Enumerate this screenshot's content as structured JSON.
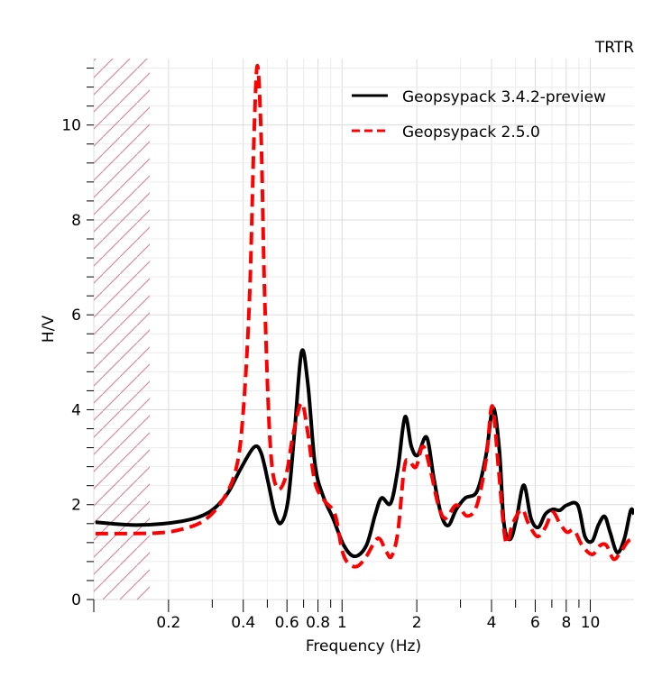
{
  "chart_data": {
    "type": "line",
    "title": "TRTR",
    "xlabel": "Frequency (Hz)",
    "ylabel": "H/V",
    "xscale": "log",
    "xlim": [
      0.1,
      15
    ],
    "ylim": [
      0,
      11.4
    ],
    "x_ticks": [
      0.2,
      0.4,
      0.6,
      0.8,
      1,
      2,
      4,
      6,
      8,
      10
    ],
    "x_tick_labels": [
      "0.2",
      "0.4",
      "0.6",
      "0.8",
      "1",
      "2",
      "4",
      "6",
      "8",
      "10"
    ],
    "y_ticks": [
      0,
      2,
      4,
      6,
      8,
      10
    ],
    "y_tick_labels": [
      "0",
      "2",
      "4",
      "6",
      "8",
      "10"
    ],
    "grid": true,
    "legend_position": "top-right",
    "excluded_band_hz": [
      0.1,
      0.168
    ],
    "series": [
      {
        "name": "Geopsypack 3.4.2-preview",
        "color": "#000000",
        "style": "solid",
        "points": [
          [
            0.1016,
            1.63
          ],
          [
            0.149,
            1.57
          ],
          [
            0.226,
            1.65
          ],
          [
            0.291,
            1.84
          ],
          [
            0.344,
            2.22
          ],
          [
            0.39,
            2.75
          ],
          [
            0.442,
            3.21
          ],
          [
            0.472,
            3.09
          ],
          [
            0.504,
            2.47
          ],
          [
            0.535,
            1.84
          ],
          [
            0.567,
            1.61
          ],
          [
            0.606,
            2.09
          ],
          [
            0.643,
            3.51
          ],
          [
            0.687,
            5.22
          ],
          [
            0.728,
            4.55
          ],
          [
            0.778,
            2.85
          ],
          [
            0.839,
            2.18
          ],
          [
            0.92,
            1.71
          ],
          [
            1.017,
            1.14
          ],
          [
            1.124,
            0.91
          ],
          [
            1.253,
            1.14
          ],
          [
            1.362,
            1.8
          ],
          [
            1.443,
            2.14
          ],
          [
            1.57,
            2.03
          ],
          [
            1.678,
            2.75
          ],
          [
            1.793,
            3.85
          ],
          [
            1.901,
            3.23
          ],
          [
            2.014,
            3.04
          ],
          [
            2.191,
            3.42
          ],
          [
            2.342,
            2.56
          ],
          [
            2.505,
            1.8
          ],
          [
            2.677,
            1.56
          ],
          [
            2.886,
            1.9
          ],
          [
            3.136,
            2.14
          ],
          [
            3.494,
            2.28
          ],
          [
            3.801,
            3.04
          ],
          [
            4.061,
            4.04
          ],
          [
            4.305,
            3.13
          ],
          [
            4.487,
            1.61
          ],
          [
            4.76,
            1.27
          ],
          [
            5.045,
            1.71
          ],
          [
            5.395,
            2.41
          ],
          [
            5.769,
            1.71
          ],
          [
            6.166,
            1.52
          ],
          [
            6.591,
            1.8
          ],
          [
            7.046,
            1.9
          ],
          [
            7.532,
            1.88
          ],
          [
            8.051,
            1.99
          ],
          [
            8.898,
            1.99
          ],
          [
            9.512,
            1.33
          ],
          [
            10.17,
            1.23
          ],
          [
            10.78,
            1.57
          ],
          [
            11.43,
            1.75
          ],
          [
            12.01,
            1.42
          ],
          [
            12.84,
            0.99
          ],
          [
            13.73,
            1.29
          ],
          [
            14.55,
            1.88
          ],
          [
            15.0,
            1.8
          ]
        ]
      },
      {
        "name": "Geopsypack 2.5.0",
        "color": "#ff0000",
        "style": "dashed",
        "points": [
          [
            0.1016,
            1.39
          ],
          [
            0.176,
            1.4
          ],
          [
            0.226,
            1.48
          ],
          [
            0.279,
            1.67
          ],
          [
            0.33,
            2.09
          ],
          [
            0.374,
            2.75
          ],
          [
            0.399,
            3.89
          ],
          [
            0.424,
            6.36
          ],
          [
            0.442,
            9.77
          ],
          [
            0.456,
            11.25
          ],
          [
            0.472,
            9.77
          ],
          [
            0.488,
            6.36
          ],
          [
            0.513,
            3.32
          ],
          [
            0.544,
            2.37
          ],
          [
            0.591,
            2.56
          ],
          [
            0.637,
            3.51
          ],
          [
            0.687,
            4.14
          ],
          [
            0.728,
            3.51
          ],
          [
            0.778,
            2.47
          ],
          [
            0.847,
            2.09
          ],
          [
            0.936,
            1.8
          ],
          [
            1.0,
            1.04
          ],
          [
            1.06,
            0.76
          ],
          [
            1.152,
            0.7
          ],
          [
            1.253,
            0.91
          ],
          [
            1.396,
            1.29
          ],
          [
            1.506,
            1.01
          ],
          [
            1.582,
            0.91
          ],
          [
            1.678,
            1.42
          ],
          [
            1.778,
            2.75
          ],
          [
            1.854,
            2.94
          ],
          [
            1.982,
            2.79
          ],
          [
            2.118,
            3.23
          ],
          [
            2.265,
            2.75
          ],
          [
            2.442,
            1.99
          ],
          [
            2.61,
            1.71
          ],
          [
            2.886,
            1.99
          ],
          [
            3.19,
            1.76
          ],
          [
            3.494,
            1.99
          ],
          [
            3.801,
            2.94
          ],
          [
            4.028,
            4.08
          ],
          [
            4.27,
            2.75
          ],
          [
            4.562,
            1.23
          ],
          [
            4.875,
            1.61
          ],
          [
            5.304,
            1.9
          ],
          [
            5.626,
            1.61
          ],
          [
            6.114,
            1.33
          ],
          [
            6.591,
            1.52
          ],
          [
            7.046,
            1.84
          ],
          [
            7.532,
            1.61
          ],
          [
            8.051,
            1.42
          ],
          [
            8.607,
            1.46
          ],
          [
            9.272,
            1.14
          ],
          [
            10.17,
            0.95
          ],
          [
            10.96,
            1.14
          ],
          [
            11.62,
            1.14
          ],
          [
            12.42,
            0.85
          ],
          [
            13.28,
            1.01
          ],
          [
            14.2,
            1.23
          ],
          [
            15.0,
            1.27
          ]
        ]
      }
    ]
  }
}
